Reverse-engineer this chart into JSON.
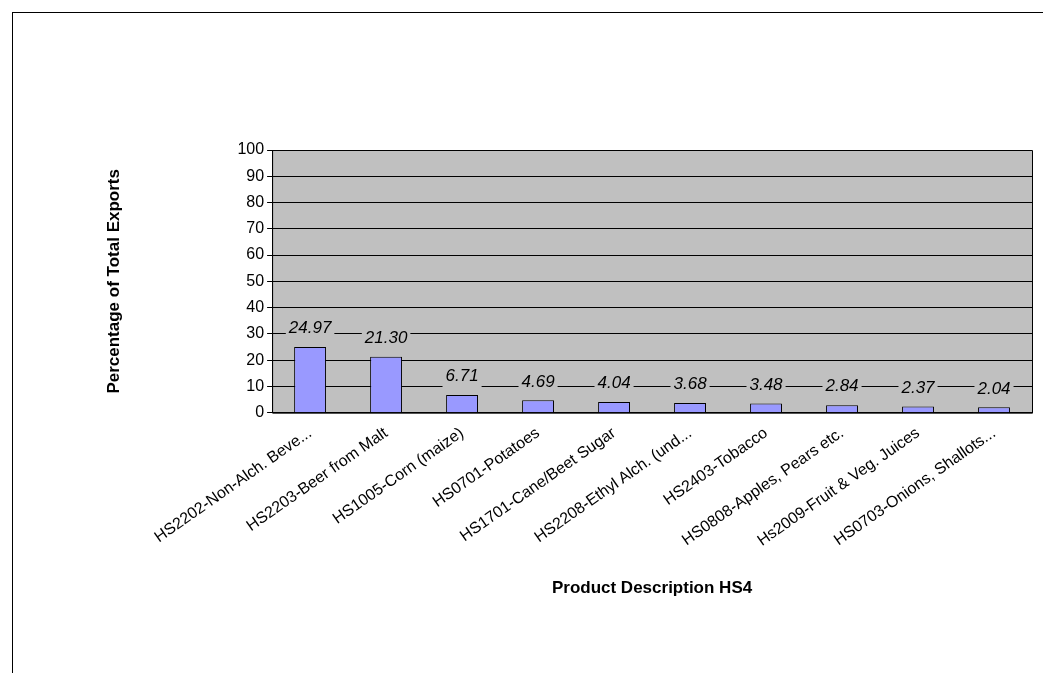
{
  "chart_data": {
    "type": "bar",
    "xlabel": "Product Description HS4",
    "ylabel": "Percentage of Total Exports",
    "categories": [
      "HS2202-Non-Alch. Beve...",
      "HS2203-Beer from Malt",
      "HS1005-Corn (maize)",
      "HS0701-Potatoes",
      "HS1701-Cane/Beet Sugar",
      "HS2208-Ethyl Alch. (und...",
      "HS2403-Tobacco",
      "HS0808-Apples, Pears etc.",
      "Hs2009-Fruit & Veg. Juices",
      "HS0703-Onions, Shallots..."
    ],
    "values": [
      24.97,
      21.3,
      6.71,
      4.69,
      4.04,
      3.68,
      3.48,
      2.84,
      2.37,
      2.04
    ],
    "value_labels": [
      "24.97",
      "21.30",
      "6.71",
      "4.69",
      "4.04",
      "3.68",
      "3.48",
      "2.84",
      "2.37",
      "2.04"
    ],
    "color": "#9999ff",
    "ylim": [
      0,
      100
    ],
    "yticks": [
      0,
      10,
      20,
      30,
      40,
      50,
      60,
      70,
      80,
      90,
      100
    ],
    "grid": "y",
    "legend": false
  }
}
